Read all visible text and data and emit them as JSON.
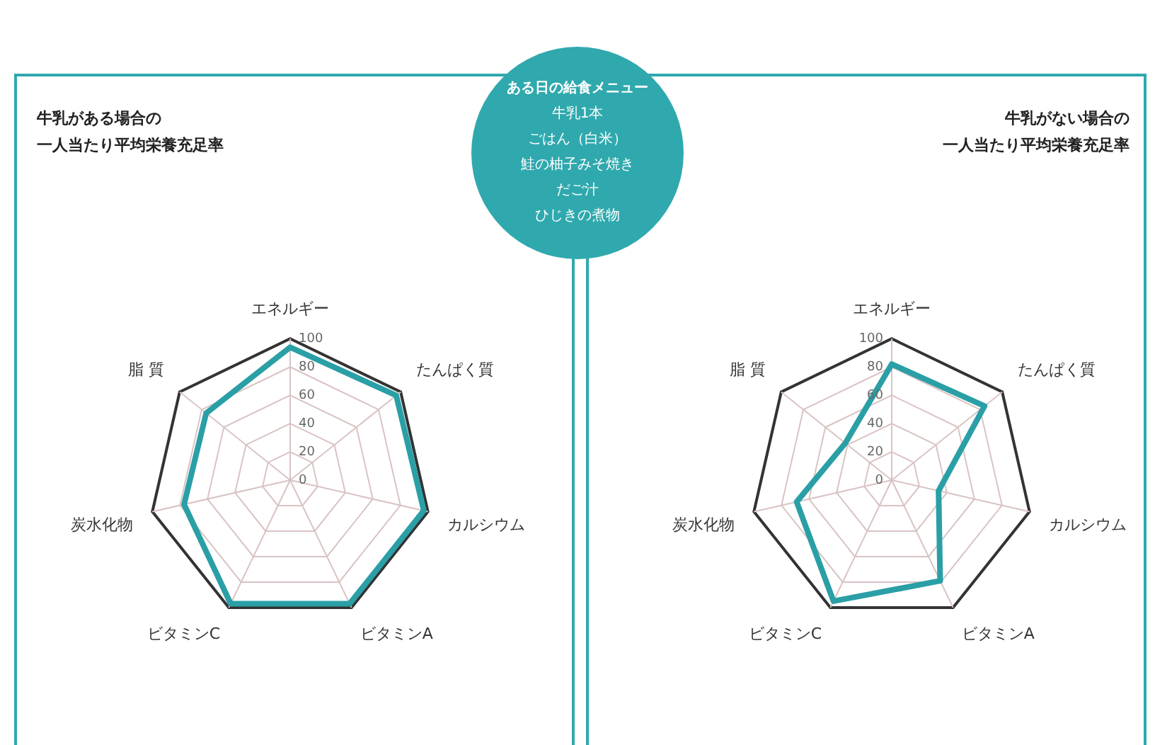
{
  "chart_data": [
    {
      "type": "radar",
      "title": "牛乳がある場合の一人当たり平均栄養充足率",
      "categories": [
        "エネルギー",
        "たんぱく質",
        "カルシウム",
        "ビタミンA",
        "ビタミンC",
        "炭水化物",
        "脂 質"
      ],
      "ylim": [
        0,
        100
      ],
      "yticks": [
        0,
        20,
        40,
        60,
        80,
        100
      ],
      "grid": true,
      "legend": false,
      "marker": "none",
      "series": [
        {
          "color": "#2a9fa6",
          "values": [
            94,
            96,
            97,
            97,
            97,
            77,
            76
          ]
        }
      ]
    },
    {
      "type": "other",
      "title": "ある日の給食メニュー",
      "annotations": [
        "牛乳1本",
        "ごはん（白米）",
        "鮭の柚子みそ焼き",
        "だご汁",
        "ひじきの煮物"
      ]
    },
    {
      "type": "radar",
      "title": "牛乳がない場合の一人当たり平均栄養充足率",
      "categories": [
        "エネルギー",
        "たんぱく質",
        "カルシウム",
        "ビタミンA",
        "ビタミンC",
        "炭水化物",
        "脂 質"
      ],
      "ylim": [
        0,
        100
      ],
      "yticks": [
        0,
        20,
        40,
        60,
        80,
        100
      ],
      "grid": true,
      "legend": false,
      "marker": "none",
      "series": [
        {
          "color": "#2a9fa6",
          "values": [
            82,
            84,
            34,
            79,
            95,
            69,
            42
          ]
        }
      ]
    }
  ]
}
